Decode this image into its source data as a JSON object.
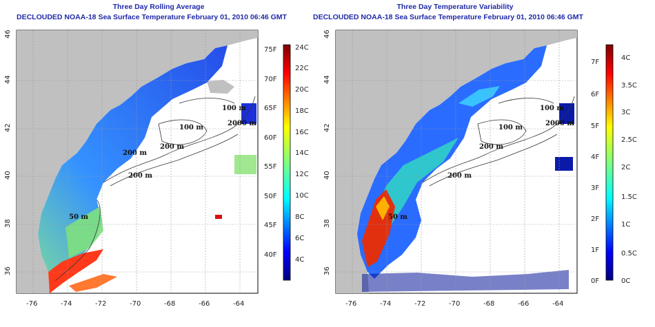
{
  "left": {
    "title": "Three Day Rolling Average",
    "subtitle": "DECLOUDED NOAA-18 Sea Surface Temperature February 01, 2010 06:46 GMT",
    "cbar_f": [
      "75F",
      "70F",
      "65F",
      "60F",
      "55F",
      "50F",
      "45F",
      "40F"
    ],
    "cbar_c": [
      "24C",
      "22C",
      "20C",
      "18C",
      "16C",
      "14C",
      "12C",
      "10C",
      "8C",
      "6C",
      "4C"
    ]
  },
  "right": {
    "title": "Three Day Temperature Variability",
    "subtitle": "DECLOUDED NOAA-18 Sea Surface Temperature February 01, 2010 06:46 GMT",
    "cbar_f": [
      "7F",
      "6F",
      "5F",
      "4F",
      "3F",
      "2F",
      "1F",
      "0F"
    ],
    "cbar_c": [
      "4C",
      "3.5C",
      "3C",
      "2.5C",
      "2C",
      "1.5C",
      "1C",
      "0.5C",
      "0C"
    ]
  },
  "x_ticks": [
    "-76",
    "-74",
    "-72",
    "-70",
    "-68",
    "-66",
    "-64"
  ],
  "y_ticks": [
    "46",
    "44",
    "42",
    "40",
    "38",
    "36"
  ],
  "isobath_labels": {
    "left": [
      "100 m",
      "2000 m",
      "100 m",
      "200 m",
      "200 m",
      "200 m",
      "50 m"
    ],
    "right": [
      "100 m",
      "2000 m",
      "100 m",
      "200 m",
      "200 m",
      "50 m"
    ]
  },
  "colors": {
    "title": "#1f2aa8",
    "land": "#c0c0c0",
    "jet": [
      "#00007f",
      "#0000ff",
      "#007fff",
      "#00ffff",
      "#7fff7f",
      "#ffff00",
      "#ff7f00",
      "#ff0000",
      "#7f0000"
    ]
  }
}
